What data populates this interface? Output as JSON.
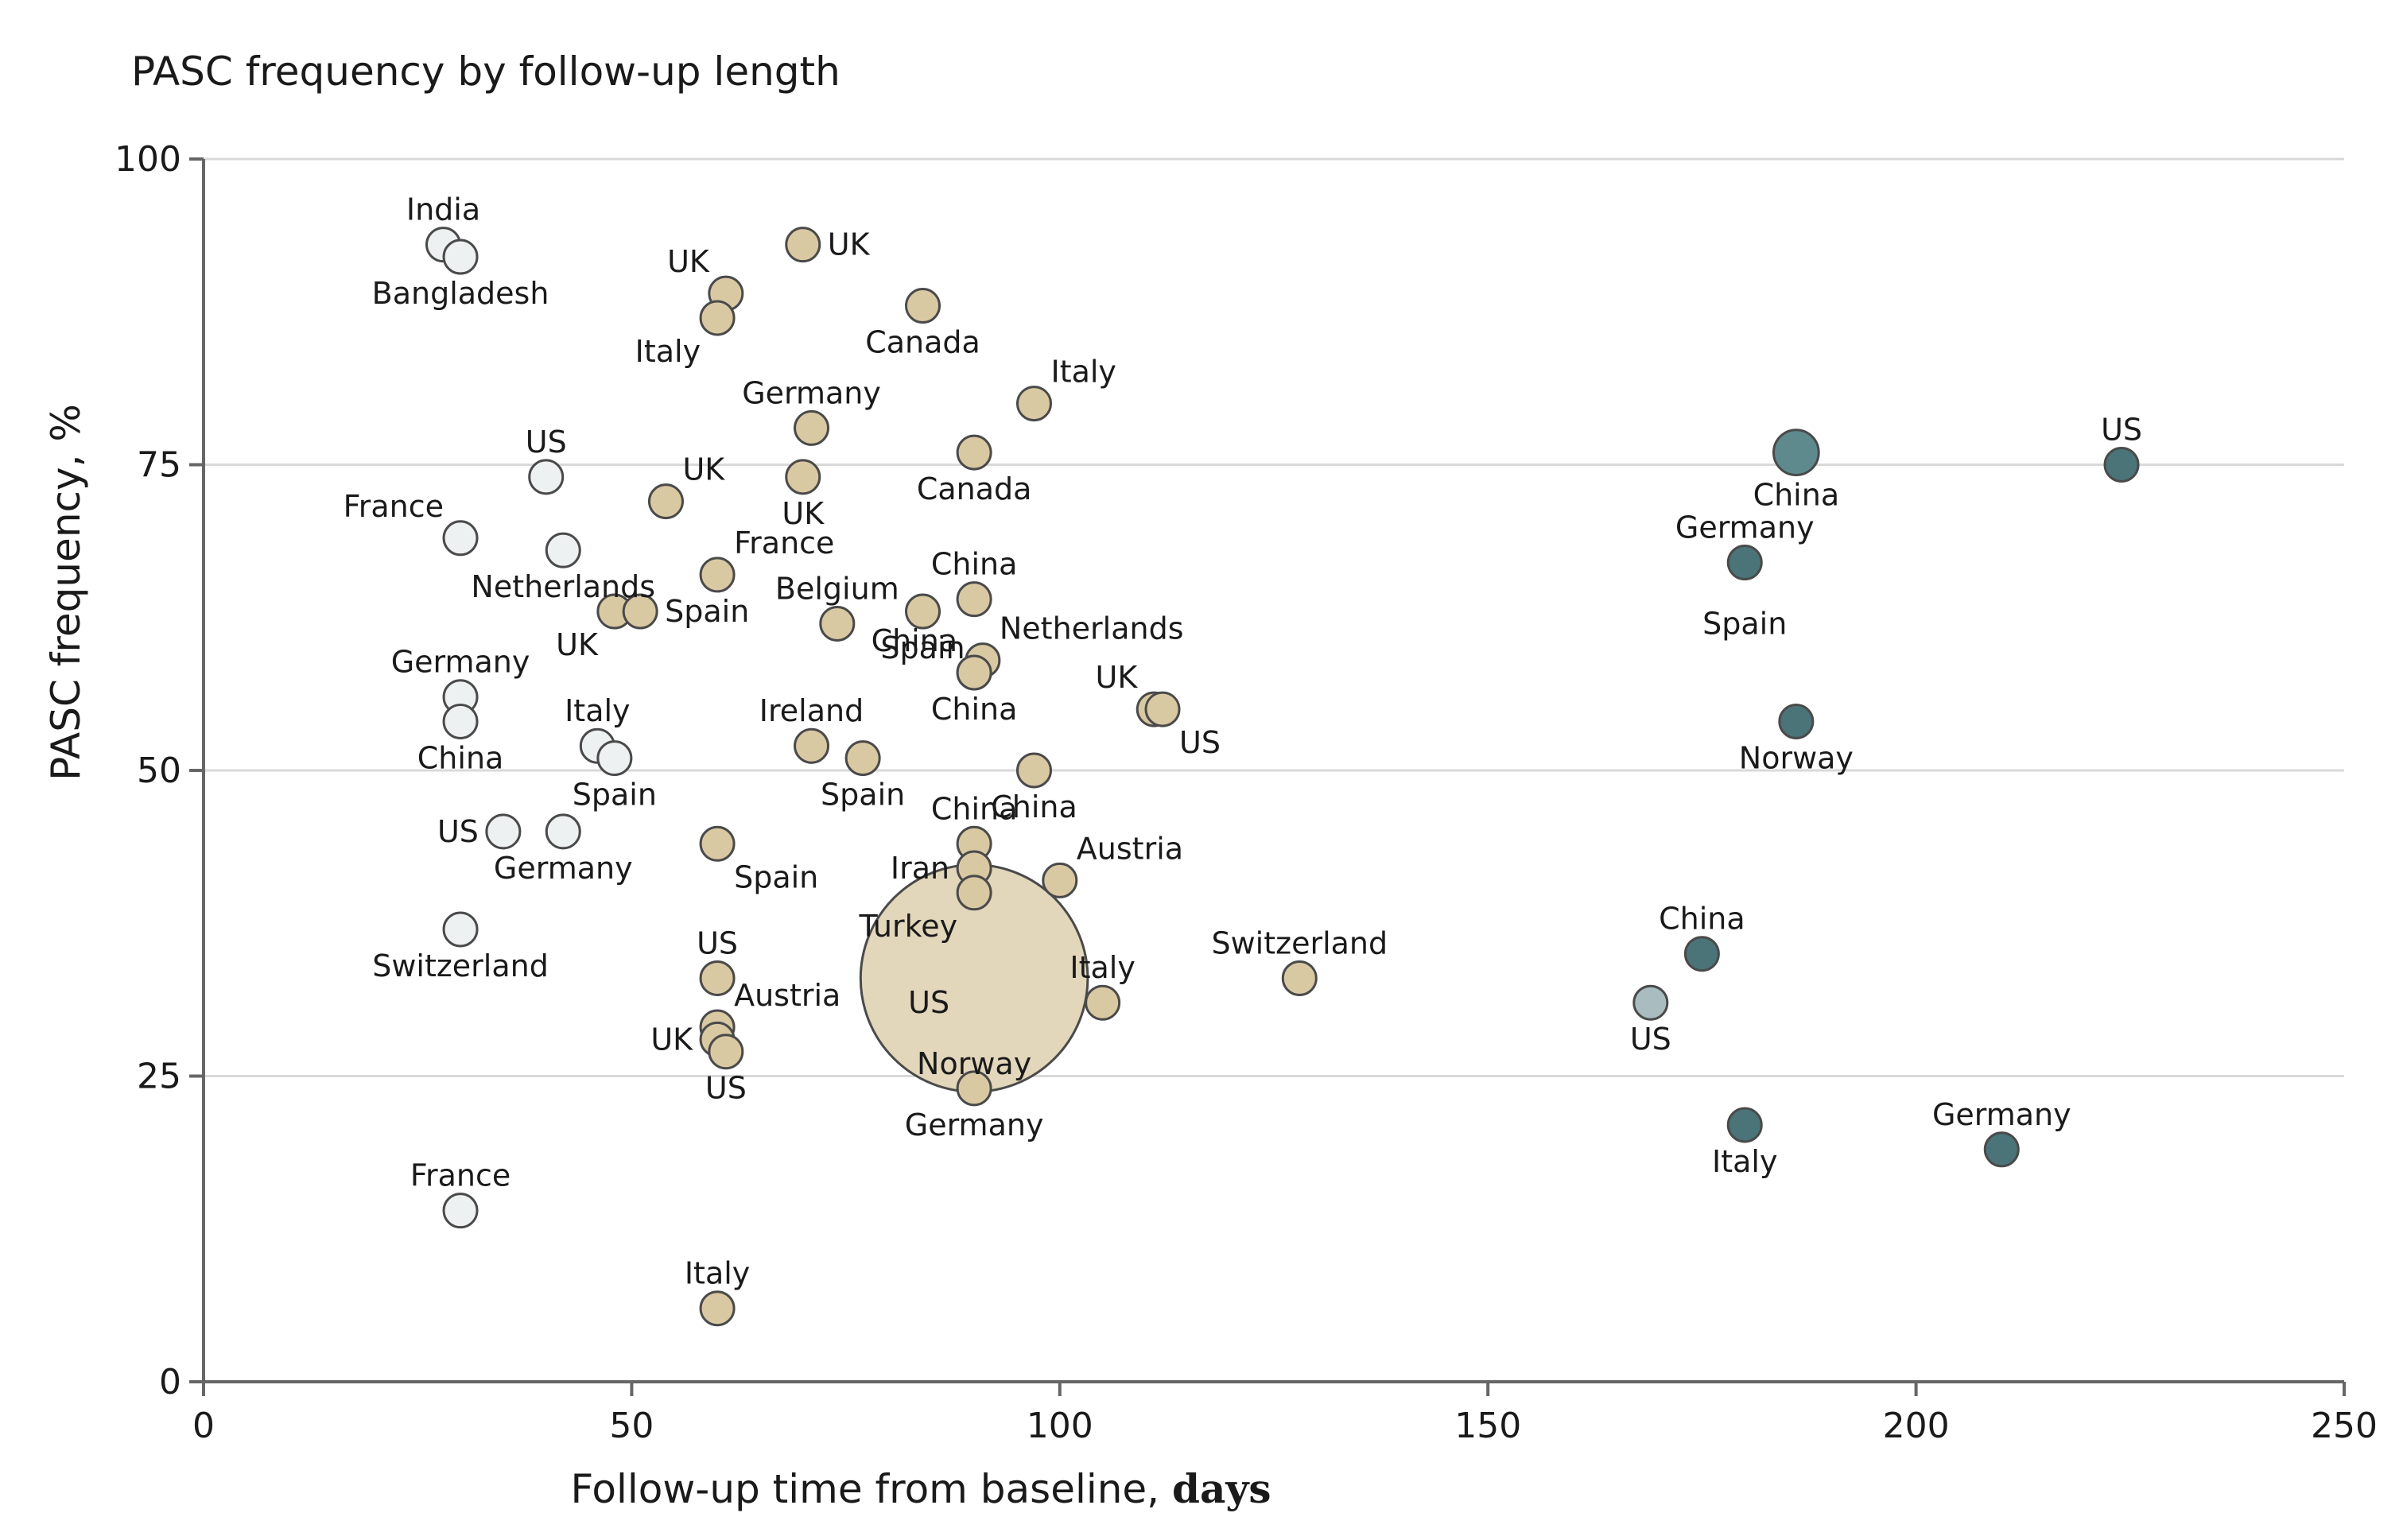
{
  "chart_data": {
    "type": "scatter",
    "title": "PASC frequency by follow-up length",
    "xlabel_main": "Follow-up time from baseline, ",
    "xlabel_unit": "days",
    "ylabel": "PASC frequency, %",
    "xlim": [
      0,
      250
    ],
    "ylim": [
      0,
      100
    ],
    "xticks": [
      0,
      50,
      100,
      150,
      200,
      250
    ],
    "yticks": [
      0,
      25,
      50,
      75,
      100
    ],
    "grid": "horizontal",
    "colors": {
      "light": "#eef1f1",
      "tan": "#d9c9a3",
      "tan_large": "#e2d6bb",
      "blue_gray": "#a9bcc0",
      "dark_teal": "#4b7478",
      "medium_teal": "#5e8a8e",
      "stroke": "#4a4a4a"
    },
    "points": [
      {
        "label": "India",
        "x": 28,
        "y": 93,
        "color": "light",
        "size": 1,
        "pos": "n"
      },
      {
        "label": "Bangladesh",
        "x": 30,
        "y": 92,
        "color": "light",
        "size": 1,
        "pos": "s"
      },
      {
        "label": "UK",
        "x": 70,
        "y": 93,
        "color": "tan",
        "size": 1,
        "pos": "e"
      },
      {
        "label": "UK",
        "x": 61,
        "y": 89,
        "color": "tan",
        "size": 1,
        "pos": "nw"
      },
      {
        "label": "Italy",
        "x": 60,
        "y": 87,
        "color": "tan",
        "size": 1,
        "pos": "sw"
      },
      {
        "label": "Canada",
        "x": 84,
        "y": 88,
        "color": "tan",
        "size": 1,
        "pos": "s"
      },
      {
        "label": "Italy",
        "x": 97,
        "y": 80,
        "color": "tan",
        "size": 1,
        "pos": "ne"
      },
      {
        "label": "Germany",
        "x": 71,
        "y": 78,
        "color": "tan",
        "size": 1,
        "pos": "n"
      },
      {
        "label": "US",
        "x": 40,
        "y": 74,
        "color": "light",
        "size": 1,
        "pos": "n"
      },
      {
        "label": "UK",
        "x": 54,
        "y": 72,
        "color": "tan",
        "size": 1,
        "pos": "ne"
      },
      {
        "label": "UK",
        "x": 70,
        "y": 74,
        "color": "tan",
        "size": 1,
        "pos": "s"
      },
      {
        "label": "Canada",
        "x": 90,
        "y": 76,
        "color": "tan",
        "size": 1,
        "pos": "s"
      },
      {
        "label": "France",
        "x": 30,
        "y": 69,
        "color": "light",
        "size": 1,
        "pos": "nw"
      },
      {
        "label": "Netherlands",
        "x": 42,
        "y": 68,
        "color": "light",
        "size": 1,
        "pos": "s"
      },
      {
        "label": "France",
        "x": 60,
        "y": 66,
        "color": "tan",
        "size": 1,
        "pos": "ne"
      },
      {
        "label": "UK",
        "x": 48,
        "y": 63,
        "color": "tan",
        "size": 1,
        "pos": "sw"
      },
      {
        "label": "Spain",
        "x": 51,
        "y": 63,
        "color": "tan",
        "size": 1,
        "pos": "e"
      },
      {
        "label": "Belgium",
        "x": 74,
        "y": 62,
        "color": "tan",
        "size": 1,
        "pos": "n"
      },
      {
        "label": "China",
        "x": 90,
        "y": 64,
        "color": "tan",
        "size": 1,
        "pos": "n"
      },
      {
        "label": "Spain",
        "x": 84,
        "y": 63,
        "color": "tan",
        "size": 1,
        "pos": "s"
      },
      {
        "label": "China",
        "x": 90,
        "y": 58,
        "color": "tan",
        "size": 1,
        "pos": "nw"
      },
      {
        "label": "Netherlands",
        "x": 91,
        "y": 59,
        "color": "tan",
        "size": 1,
        "pos": "ne"
      },
      {
        "label": "China",
        "x": 90,
        "y": 58,
        "color": "tan",
        "size": 1,
        "pos": "s"
      },
      {
        "label": "UK",
        "x": 111,
        "y": 55,
        "color": "tan",
        "size": 1,
        "pos": "nw"
      },
      {
        "label": "US",
        "x": 112,
        "y": 55,
        "color": "tan",
        "size": 1,
        "pos": "se"
      },
      {
        "label": "Germany",
        "x": 30,
        "y": 56,
        "color": "light",
        "size": 1,
        "pos": "n"
      },
      {
        "label": "China",
        "x": 30,
        "y": 54,
        "color": "light",
        "size": 1,
        "pos": "s"
      },
      {
        "label": "Italy",
        "x": 46,
        "y": 52,
        "color": "light",
        "size": 1,
        "pos": "n"
      },
      {
        "label": "Spain",
        "x": 48,
        "y": 51,
        "color": "light",
        "size": 1,
        "pos": "s"
      },
      {
        "label": "Ireland",
        "x": 71,
        "y": 52,
        "color": "tan",
        "size": 1,
        "pos": "n"
      },
      {
        "label": "Spain",
        "x": 77,
        "y": 51,
        "color": "tan",
        "size": 1,
        "pos": "s"
      },
      {
        "label": "China",
        "x": 97,
        "y": 50,
        "color": "tan",
        "size": 1,
        "pos": "s"
      },
      {
        "label": "US",
        "x": 35,
        "y": 45,
        "color": "light",
        "size": 1,
        "pos": "w"
      },
      {
        "label": "Germany",
        "x": 42,
        "y": 45,
        "color": "light",
        "size": 1,
        "pos": "s"
      },
      {
        "label": "Spain",
        "x": 60,
        "y": 44,
        "color": "tan",
        "size": 1,
        "pos": "se"
      },
      {
        "label": "China",
        "x": 90,
        "y": 44,
        "color": "tan",
        "size": 1,
        "pos": "n"
      },
      {
        "label": "Iran",
        "x": 90,
        "y": 42,
        "color": "tan",
        "size": 1,
        "pos": "w"
      },
      {
        "label": "Turkey",
        "x": 90,
        "y": 40,
        "color": "tan",
        "size": 1,
        "pos": "sw"
      },
      {
        "label": "Austria",
        "x": 100,
        "y": 41,
        "color": "tan",
        "size": 1,
        "pos": "ne"
      },
      {
        "label": "Switzerland",
        "x": 30,
        "y": 37,
        "color": "light",
        "size": 1,
        "pos": "s"
      },
      {
        "label": "US",
        "x": 90,
        "y": 33,
        "color": "tan_large",
        "size": 6.8,
        "pos": "none"
      },
      {
        "label": "US",
        "x": 60,
        "y": 33,
        "color": "tan",
        "size": 1,
        "pos": "n"
      },
      {
        "label": "Austria",
        "x": 60,
        "y": 29,
        "color": "tan",
        "size": 1,
        "pos": "ne"
      },
      {
        "label": "UK",
        "x": 60,
        "y": 28,
        "color": "tan",
        "size": 1,
        "pos": "w"
      },
      {
        "label": "US",
        "x": 61,
        "y": 27,
        "color": "tan",
        "size": 1,
        "pos": "s"
      },
      {
        "label": "Italy",
        "x": 105,
        "y": 31,
        "color": "tan",
        "size": 1,
        "pos": "n"
      },
      {
        "label": "Switzerland",
        "x": 128,
        "y": 33,
        "color": "tan",
        "size": 1,
        "pos": "n"
      },
      {
        "label": "Germany",
        "x": 90,
        "y": 24,
        "color": "tan",
        "size": 1,
        "pos": "s"
      },
      {
        "label": "France",
        "x": 30,
        "y": 14,
        "color": "light",
        "size": 1,
        "pos": "n"
      },
      {
        "label": "Italy",
        "x": 60,
        "y": 6,
        "color": "tan",
        "size": 1,
        "pos": "n"
      },
      {
        "label": "China",
        "x": 186,
        "y": 76,
        "color": "medium_teal",
        "size": 1.35,
        "pos": "s"
      },
      {
        "label": "US",
        "x": 224,
        "y": 75,
        "color": "dark_teal",
        "size": 1,
        "pos": "n"
      },
      {
        "label": "Germany",
        "x": 180,
        "y": 67,
        "color": "dark_teal",
        "size": 1,
        "pos": "n"
      },
      {
        "label": "Norway",
        "x": 186,
        "y": 54,
        "color": "dark_teal",
        "size": 1,
        "pos": "s"
      },
      {
        "label": "China",
        "x": 175,
        "y": 35,
        "color": "dark_teal",
        "size": 1,
        "pos": "n"
      },
      {
        "label": "US",
        "x": 169,
        "y": 31,
        "color": "blue_gray",
        "size": 1,
        "pos": "s"
      },
      {
        "label": "Italy",
        "x": 180,
        "y": 21,
        "color": "dark_teal",
        "size": 1,
        "pos": "s"
      },
      {
        "label": "Germany",
        "x": 210,
        "y": 19,
        "color": "dark_teal",
        "size": 1,
        "pos": "n"
      }
    ],
    "annotations": [
      {
        "text": "Spain",
        "x": 180,
        "y": 65,
        "pos": "s"
      },
      {
        "text": "US",
        "x": 90,
        "y": 31,
        "pos": "w"
      },
      {
        "text": "Norway",
        "x": 90,
        "y": 26,
        "pos": "c"
      }
    ]
  }
}
